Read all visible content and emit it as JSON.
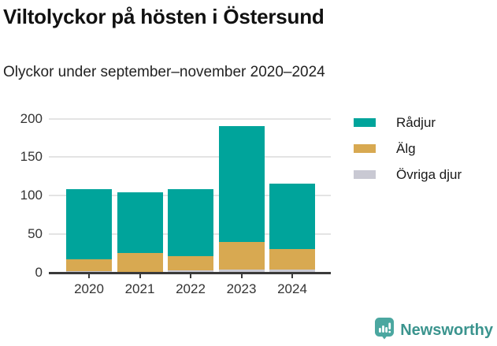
{
  "title": "Viltolyckor på hösten i Östersund",
  "subtitle": "Olyckor under september–november 2020–2024",
  "chart_data": {
    "type": "bar",
    "stacked": true,
    "title": "Viltolyckor på hösten i Östersund",
    "subtitle": "Olyckor under september–november 2020–2024",
    "categories": [
      "2020",
      "2021",
      "2022",
      "2023",
      "2024"
    ],
    "series": [
      {
        "name": "Rådjur",
        "color": "#00A49B",
        "values": [
          91,
          78,
          87,
          150,
          85
        ]
      },
      {
        "name": "Älg",
        "color": "#D8A951",
        "values": [
          15,
          25,
          18,
          36,
          27
        ]
      },
      {
        "name": "Övriga djur",
        "color": "#C9C9D3",
        "values": [
          2,
          1,
          3,
          4,
          4
        ]
      }
    ],
    "stack_totals": [
      108,
      104,
      108,
      190,
      116
    ],
    "xlabel": "",
    "ylabel": "",
    "ylim": [
      0,
      200
    ],
    "yticks": [
      0,
      50,
      100,
      150,
      200
    ],
    "grid": true,
    "legend_position": "right",
    "colors": {
      "axis": "#3A3A3A",
      "gridline": "#E4E4E4",
      "tick_label": "#333333"
    }
  },
  "footer": {
    "brand": "Newsworthy",
    "brand_color": "#3B948E",
    "logo_icon": "bar-chart-speech-bubble-icon"
  }
}
